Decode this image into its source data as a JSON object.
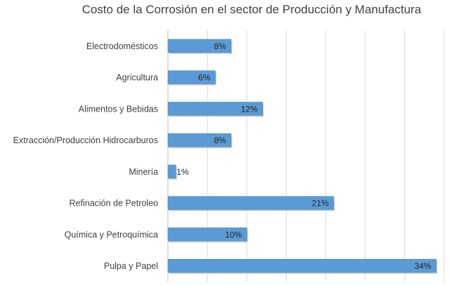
{
  "chart_data": {
    "type": "bar",
    "orientation": "horizontal",
    "title": "Costo de la Corrosión en el sector de Producción y Manufactura",
    "xlabel": "",
    "ylabel": "",
    "categories": [
      "Electrodomésticos",
      "Agricultura",
      "Alimentos y Bebidas",
      "Extracción/Producción Hidrocarburos",
      "Minería",
      "Refinación de Petroleo",
      "Química y Petroquímica",
      "Pulpa y Papel"
    ],
    "values": [
      8,
      6,
      12,
      8,
      1,
      21,
      10,
      34
    ],
    "data_labels": [
      "8%",
      "6%",
      "12%",
      "8%",
      "1%",
      "21%",
      "10%",
      "34%"
    ],
    "value_unit": "%",
    "xlim": [
      0,
      35
    ],
    "grid": "vertical",
    "legend": "none",
    "bar_color": "#5B9BD5",
    "gridline_color": "#D9D9D9"
  }
}
